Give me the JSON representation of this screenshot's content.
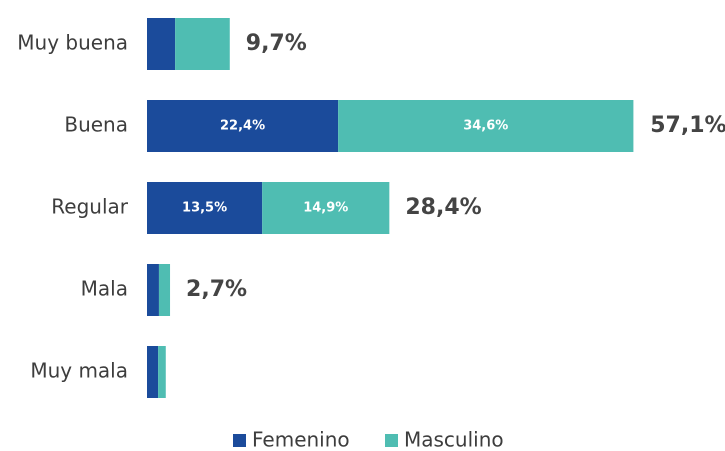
{
  "chart_data": {
    "type": "stacked-barh",
    "categories": [
      "Muy buena",
      "Buena",
      "Regular",
      "Mala",
      "Muy mala"
    ],
    "series": [
      {
        "name": "Femenino",
        "color": "#1b4b9b",
        "values": [
          3.3,
          22.4,
          13.5,
          1.4,
          1.3
        ],
        "value_labels": [
          null,
          "22,4%",
          "13,5%",
          null,
          null
        ]
      },
      {
        "name": "Masculino",
        "color": "#4fbdb2",
        "values": [
          6.4,
          34.6,
          14.9,
          1.3,
          0.9
        ],
        "value_labels": [
          null,
          "34,6%",
          "14,9%",
          null,
          null
        ]
      }
    ],
    "totals": [
      9.7,
      57.1,
      28.4,
      2.7,
      null
    ],
    "total_labels": [
      "9,7%",
      "57,1%",
      "28,4%",
      "2,7%",
      null
    ],
    "xlim": [
      0,
      60
    ],
    "legend": "bottom"
  }
}
